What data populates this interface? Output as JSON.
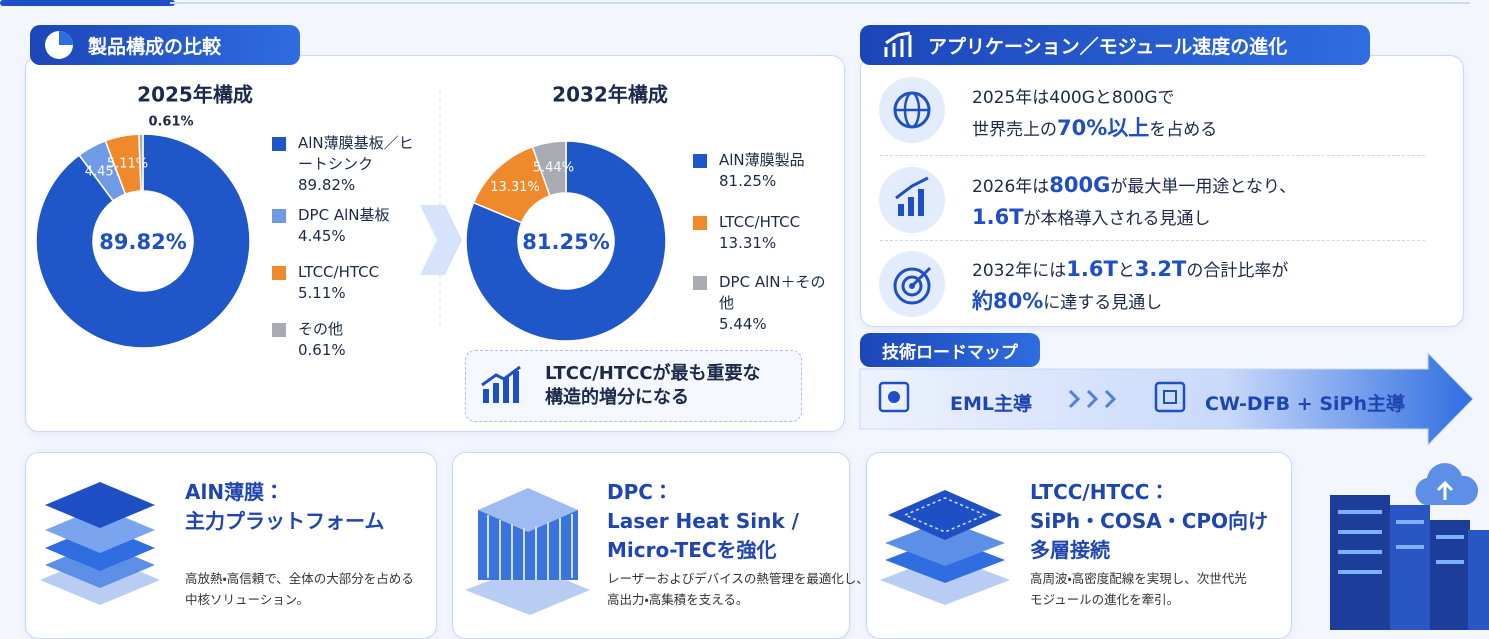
{
  "composition": {
    "title": "製品構成の比較",
    "charts": [
      {
        "type": "pie",
        "title": "2025年構成",
        "categories": [
          "AlN薄膜基板／ヒートシンク",
          "DPC AlN基板",
          "LTCC/HTCC",
          "その他"
        ],
        "values": [
          89.82,
          4.45,
          5.11,
          0.61
        ],
        "value_labels": [
          "89.82%",
          "4.45%",
          "5.11%",
          "0.61%"
        ],
        "colors": [
          "#1f57c8",
          "#6f9be6",
          "#f0892c",
          "#a9abb2"
        ]
      },
      {
        "type": "pie",
        "title": "2032年構成",
        "categories": [
          "AlN薄膜製品",
          "LTCC/HTCC",
          "DPC AlN＋その他"
        ],
        "values": [
          81.25,
          13.31,
          5.44
        ],
        "value_labels": [
          "81.25%",
          "13.31%",
          "5.44%"
        ],
        "colors": [
          "#1f57c8",
          "#f0892c",
          "#a9abb2"
        ]
      }
    ],
    "note": [
      "LTCC/HTCCが最も重要な",
      "構造的増分になる"
    ]
  },
  "speed": {
    "title": "アプリケーション／モジュール速度の進化",
    "items": [
      {
        "parts": [
          "2025年は400Gと800Gで",
          "世界売上の",
          "70%以上",
          "を占める"
        ]
      },
      {
        "parts": [
          "2026年は",
          "800G",
          "が最大単一用途となり、",
          "1.6T",
          "が本格導入される見通し"
        ]
      },
      {
        "parts": [
          "2032年には",
          "1.6T",
          "と",
          "3.2T",
          "の合計比率が",
          "約80%",
          "に達する見通し"
        ]
      }
    ]
  },
  "roadmap": {
    "title": "技術ロードマップ",
    "from": "EML主導",
    "to": "CW-DFB + SiPh主導"
  },
  "cards": [
    {
      "title": [
        "AlN薄膜：",
        "主力プラットフォーム"
      ],
      "text": [
        "高放熱・高信頼で、全体の大部分を占める",
        "中核ソリューション。"
      ]
    },
    {
      "title": [
        "DPC：",
        "Laser Heat Sink /",
        "Micro-TECを強化"
      ],
      "text": [
        "レーザーおよびデバイスの熱管理を最適化し、",
        "高出力・高集積を支える。"
      ]
    },
    {
      "title": [
        "LTCC/HTCC：",
        "SiPh・COSA・CPO向け",
        "多層接続"
      ],
      "text": [
        "高周波・高密度配線を実現し、次世代光",
        "モジュールの進化を牽引。"
      ]
    }
  ]
}
